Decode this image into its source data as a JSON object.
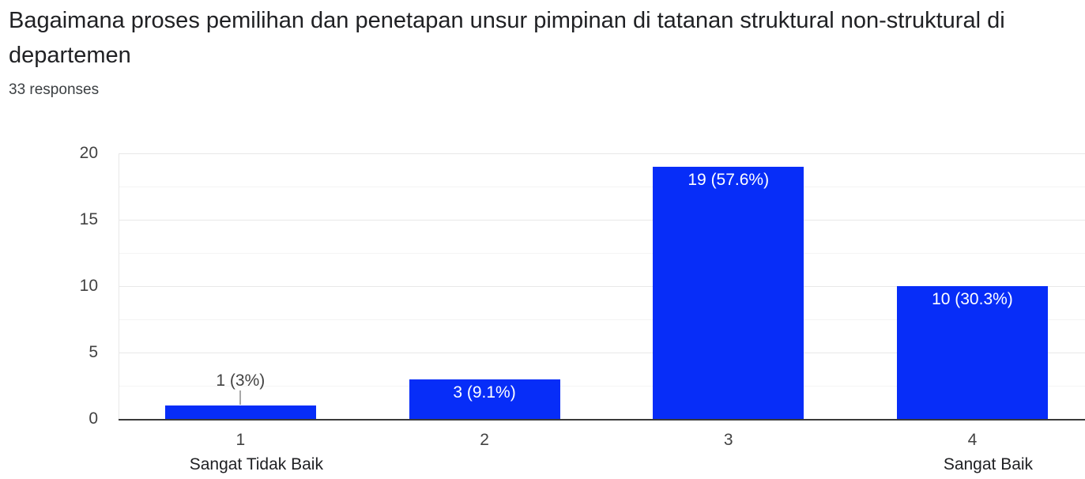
{
  "header": {
    "title": "Bagaimana proses pemilihan dan penetapan unsur pimpinan di tatanan struktural non-struktural di departemen",
    "responses_count": "33 responses"
  },
  "chart_data": {
    "type": "bar",
    "title": "Bagaimana proses pemilihan dan penetapan unsur pimpinan di tatanan struktural non-struktural di departemen",
    "subtitle": "33 responses",
    "categories": [
      "1",
      "2",
      "3",
      "4"
    ],
    "category_sublabels": [
      "Sangat Tidak Baik",
      "",
      "",
      "Sangat Baik"
    ],
    "values": [
      1,
      3,
      19,
      10
    ],
    "value_labels": [
      "1 (3%)",
      "3 (9.1%)",
      "19 (57.6%)",
      "10 (30.3%)"
    ],
    "label_placement": [
      "outside",
      "inside",
      "inside",
      "inside"
    ],
    "xlabel": "",
    "ylabel": "",
    "ylim": [
      0,
      20
    ],
    "yticks": [
      0,
      5,
      10,
      15,
      20
    ],
    "minor_grid_step": 2.5,
    "grid": "horizontal",
    "legend": "none",
    "colors": {
      "bar": "#072df8",
      "bar_label_inside": "#ffffff",
      "bar_label_outside": "#424242",
      "axis_text": "#424242",
      "category_text": "#202124",
      "title_text": "#202124",
      "baseline": "#3a3a3a",
      "gridline_major": "#e8e8e8",
      "gridline_minor": "#f4f4f4",
      "connector": "#a8a8a8"
    }
  }
}
